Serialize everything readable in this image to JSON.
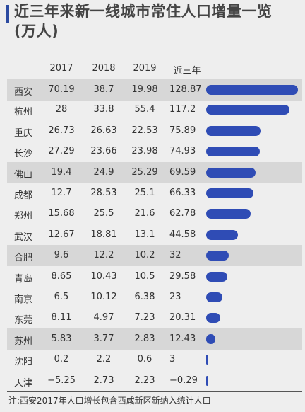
{
  "header": {
    "title_line1": "近三年来新一线城市常住人口增量一览",
    "title_line2": "(万人)"
  },
  "chart_data": {
    "type": "table",
    "columns": [
      "2017",
      "2018",
      "2019",
      "近三年总增量"
    ],
    "rows": [
      {
        "city": "西安",
        "v2017": "70.19",
        "v2018": "38.7",
        "v2019": "19.98",
        "total": "128.87",
        "total_value": 128.87
      },
      {
        "city": "杭州",
        "v2017": "28",
        "v2018": "33.8",
        "v2019": "55.4",
        "total": "117.2",
        "total_value": 117.2
      },
      {
        "city": "重庆",
        "v2017": "26.73",
        "v2018": "26.63",
        "v2019": "22.53",
        "total": "75.89",
        "total_value": 75.89
      },
      {
        "city": "长沙",
        "v2017": "27.29",
        "v2018": "23.66",
        "v2019": "23.98",
        "total": "74.93",
        "total_value": 74.93
      },
      {
        "city": "佛山",
        "v2017": "19.4",
        "v2018": "24.9",
        "v2019": "25.29",
        "total": "69.59",
        "total_value": 69.59
      },
      {
        "city": "成都",
        "v2017": "12.7",
        "v2018": "28.53",
        "v2019": "25.1",
        "total": "66.33",
        "total_value": 66.33
      },
      {
        "city": "郑州",
        "v2017": "15.68",
        "v2018": "25.5",
        "v2019": "21.6",
        "total": "62.78",
        "total_value": 62.78
      },
      {
        "city": "武汉",
        "v2017": "12.67",
        "v2018": "18.81",
        "v2019": "13.1",
        "total": "44.58",
        "total_value": 44.58
      },
      {
        "city": "合肥",
        "v2017": "9.6",
        "v2018": "12.2",
        "v2019": "10.2",
        "total": "32",
        "total_value": 32
      },
      {
        "city": "青岛",
        "v2017": "8.65",
        "v2018": "10.43",
        "v2019": "10.5",
        "total": "29.58",
        "total_value": 29.58
      },
      {
        "city": "南京",
        "v2017": "6.5",
        "v2018": "10.12",
        "v2019": "6.38",
        "total": "23",
        "total_value": 23
      },
      {
        "city": "东莞",
        "v2017": "8.11",
        "v2018": "4.97",
        "v2019": "7.23",
        "total": "20.31",
        "total_value": 20.31
      },
      {
        "city": "苏州",
        "v2017": "5.83",
        "v2018": "3.77",
        "v2019": "2.83",
        "total": "12.43",
        "total_value": 12.43
      },
      {
        "city": "沈阳",
        "v2017": "0.2",
        "v2018": "2.2",
        "v2019": "0.6",
        "total": "3",
        "total_value": 3
      },
      {
        "city": "天津",
        "v2017": "−5.25",
        "v2018": "2.73",
        "v2019": "2.23",
        "total": "−0.29",
        "total_value": -0.29
      }
    ],
    "shaded_rows": [
      0,
      4,
      8,
      12
    ],
    "bar_color": "#2f4cb5",
    "bar_max": 128.87
  },
  "footer": {
    "note": "注:西安2017年人口增长包含西咸新区新纳入统计人口"
  }
}
